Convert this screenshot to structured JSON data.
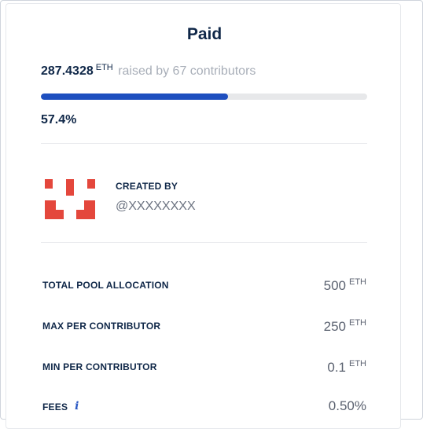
{
  "header": {
    "title": "Paid"
  },
  "raise": {
    "amount": "287.4328",
    "unit": "ETH",
    "description": "raised by 67 contributors",
    "progress_percent": 57.4,
    "percent_label": "57.4%",
    "progress_color": "#1e4fbf"
  },
  "creator": {
    "label": "CREATED BY",
    "handle": "@XXXXXXXX",
    "avatar_icon": "red-pixel-identicon",
    "avatar_color": "#e4473c"
  },
  "details": [
    {
      "label": "TOTAL POOL ALLOCATION",
      "value": "500",
      "unit": "ETH"
    },
    {
      "label": "MAX PER CONTRIBUTOR",
      "value": "250",
      "unit": "ETH"
    },
    {
      "label": "MIN PER CONTRIBUTOR",
      "value": "0.1",
      "unit": "ETH"
    },
    {
      "label": "FEES",
      "value": "0.50%",
      "unit": "",
      "info_icon": "i"
    }
  ]
}
